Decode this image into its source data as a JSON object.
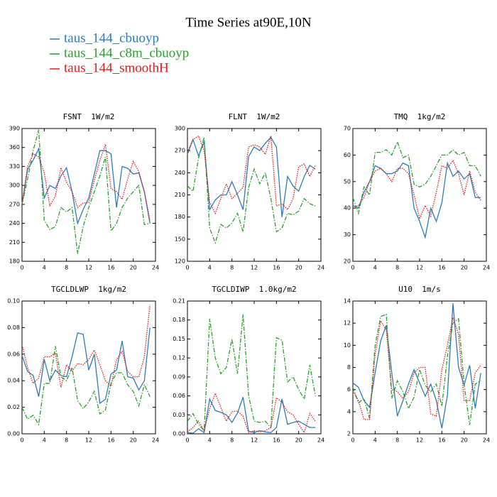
{
  "title": "Time Series at90E,10N",
  "chart_data": [
    {
      "type": "line",
      "title": "FSNT  1W/m2",
      "x": [
        0,
        1,
        2,
        3,
        4,
        5,
        6,
        7,
        8,
        9,
        10,
        11,
        12,
        13,
        14,
        15,
        16,
        17,
        18,
        19,
        20,
        21,
        22,
        23
      ],
      "xlim": [
        0,
        24
      ],
      "xticks": [
        0,
        4,
        8,
        12,
        16,
        20,
        24
      ],
      "ylim": [
        180,
        390
      ],
      "yticks": [
        180,
        210,
        240,
        270,
        300,
        330,
        360,
        390
      ],
      "series": [
        {
          "name": "taus_144_cbuoyp",
          "color": "#2b7bba",
          "style": "solid",
          "values": [
            270,
            325,
            340,
            358,
            280,
            300,
            295,
            315,
            328,
            290,
            240,
            262,
            280,
            318,
            355,
            355,
            350,
            265,
            330,
            327,
            318,
            320,
            290,
            240
          ]
        },
        {
          "name": "taus_144_c8m_cbuoyp",
          "color": "#2ca02c",
          "style": "dashdot",
          "values": [
            270,
            310,
            355,
            388,
            245,
            230,
            235,
            265,
            258,
            265,
            192,
            235,
            265,
            290,
            315,
            345,
            228,
            240,
            265,
            280,
            290,
            300,
            238,
            240
          ]
        },
        {
          "name": "taus_144_smoothH",
          "color": "#e41a1c",
          "style": "dotted",
          "values": [
            270,
            330,
            350,
            345,
            320,
            268,
            283,
            328,
            305,
            290,
            265,
            272,
            273,
            308,
            340,
            365,
            295,
            290,
            278,
            310,
            338,
            322,
            290,
            245
          ]
        }
      ]
    },
    {
      "type": "line",
      "title": "FLNT  1W/m2",
      "x": [
        0,
        1,
        2,
        3,
        4,
        5,
        6,
        7,
        8,
        9,
        10,
        11,
        12,
        13,
        14,
        15,
        16,
        17,
        18,
        19,
        20,
        21,
        22,
        23
      ],
      "xlim": [
        0,
        24
      ],
      "xticks": [
        0,
        4,
        8,
        12,
        16,
        20,
        24
      ],
      "ylim": [
        120,
        300
      ],
      "yticks": [
        120,
        150,
        180,
        210,
        240,
        270,
        300
      ],
      "series": [
        {
          "name": "taus_144_cbuoyp",
          "color": "#2b7bba",
          "style": "solid",
          "values": [
            265,
            285,
            263,
            282,
            190,
            203,
            210,
            210,
            228,
            210,
            190,
            262,
            275,
            270,
            280,
            288,
            275,
            180,
            235,
            222,
            215,
            235,
            250,
            245
          ]
        },
        {
          "name": "taus_144_c8m_cbuoyp",
          "color": "#2ca02c",
          "style": "dashdot",
          "values": [
            222,
            215,
            260,
            288,
            165,
            145,
            170,
            165,
            172,
            185,
            160,
            220,
            245,
            225,
            240,
            205,
            160,
            165,
            185,
            183,
            188,
            205,
            198,
            195
          ]
        },
        {
          "name": "taus_144_smoothH",
          "color": "#e41a1c",
          "style": "dotted",
          "values": [
            268,
            285,
            290,
            270,
            200,
            185,
            205,
            225,
            205,
            212,
            220,
            275,
            278,
            275,
            265,
            290,
            195,
            198,
            190,
            205,
            248,
            252,
            235,
            250
          ]
        }
      ]
    },
    {
      "type": "line",
      "title": "TMQ  1kg/m2",
      "x": [
        0,
        1,
        2,
        3,
        4,
        5,
        6,
        7,
        8,
        9,
        10,
        11,
        12,
        13,
        14,
        15,
        16,
        17,
        18,
        19,
        20,
        21,
        22,
        23
      ],
      "xlim": [
        0,
        24
      ],
      "xticks": [
        0,
        4,
        8,
        12,
        16,
        20,
        24
      ],
      "ylim": [
        20,
        70
      ],
      "yticks": [
        20,
        30,
        40,
        50,
        60,
        70
      ],
      "series": [
        {
          "name": "taus_144_cbuoyp",
          "color": "#2b7bba",
          "style": "solid",
          "values": [
            41,
            40,
            46,
            50,
            56,
            55,
            53,
            53,
            54,
            57,
            56,
            40,
            35,
            29,
            40,
            35,
            42,
            57,
            52,
            54,
            51,
            53,
            44,
            44
          ]
        },
        {
          "name": "taus_144_c8m_cbuoyp",
          "color": "#2ca02c",
          "style": "dashdot",
          "values": [
            44,
            38,
            48,
            45,
            61,
            61,
            62,
            60,
            65,
            59,
            60,
            49,
            48,
            49,
            52,
            56,
            60,
            60,
            62,
            60,
            61,
            56,
            56,
            52
          ]
        },
        {
          "name": "taus_144_smoothH",
          "color": "#e41a1c",
          "style": "dotted",
          "values": [
            40,
            41,
            44,
            50,
            54,
            55,
            53,
            50,
            55,
            55,
            53,
            45,
            36,
            41,
            37,
            46,
            56,
            55,
            58,
            53,
            45,
            54,
            46,
            43
          ]
        }
      ]
    },
    {
      "type": "line",
      "title": "TGCLDLWP  1kg/m2",
      "x": [
        0,
        1,
        2,
        3,
        4,
        5,
        6,
        7,
        8,
        9,
        10,
        11,
        12,
        13,
        14,
        15,
        16,
        17,
        18,
        19,
        20,
        21,
        22,
        23
      ],
      "xlim": [
        0,
        24
      ],
      "xticks": [
        0,
        4,
        8,
        12,
        16,
        20,
        24
      ],
      "ylim": [
        0,
        0.1
      ],
      "yticks": [
        {
          "value": 0,
          "label": "0.00"
        },
        0.02,
        0.04,
        0.06,
        0.08,
        {
          "value": 0.1,
          "label": "0.10"
        }
      ],
      "series": [
        {
          "name": "taus_144_cbuoyp",
          "color": "#2b7bba",
          "style": "solid",
          "values": [
            0.059,
            0.047,
            0.044,
            0.028,
            0.056,
            0.04,
            0.048,
            0.044,
            0.043,
            0.058,
            0.076,
            0.075,
            0.048,
            0.06,
            0.023,
            0.026,
            0.045,
            0.048,
            0.07,
            0.043,
            0.042,
            0.033,
            0.04,
            0.08
          ]
        },
        {
          "name": "taus_144_c8m_cbuoyp",
          "color": "#2ca02c",
          "style": "dashdot",
          "values": [
            0.02,
            0.011,
            0.014,
            0.007,
            0.038,
            0.038,
            0.066,
            0.043,
            0.04,
            0.05,
            0.025,
            0.019,
            0.024,
            0.032,
            0.015,
            0.018,
            0.038,
            0.046,
            0.046,
            0.037,
            0.032,
            0.021,
            0.037,
            0.028
          ]
        },
        {
          "name": "taus_144_smoothH",
          "color": "#e41a1c",
          "style": "dotted",
          "values": [
            0.067,
            0.05,
            0.038,
            0.042,
            0.058,
            0.058,
            0.061,
            0.035,
            0.052,
            0.047,
            0.053,
            0.052,
            0.056,
            0.063,
            0.052,
            0.04,
            0.036,
            0.056,
            0.062,
            0.047,
            0.043,
            0.043,
            0.058,
            0.097
          ]
        }
      ]
    },
    {
      "type": "line",
      "title": "TGCLDIWP  1.0kg/m2",
      "x": [
        0,
        1,
        2,
        3,
        4,
        5,
        6,
        7,
        8,
        9,
        10,
        11,
        12,
        13,
        14,
        15,
        16,
        17,
        18,
        19,
        20,
        21,
        22,
        23
      ],
      "xlim": [
        0,
        24
      ],
      "xticks": [
        0,
        4,
        8,
        12,
        16,
        20,
        24
      ],
      "ylim": [
        0,
        0.21
      ],
      "yticks": [
        {
          "value": 0,
          "label": "0.00"
        },
        0.03,
        0.06,
        0.09,
        0.12,
        0.15,
        0.18,
        0.21
      ],
      "series": [
        {
          "name": "taus_144_cbuoyp",
          "color": "#2b7bba",
          "style": "solid",
          "values": [
            0.002,
            0.001,
            0.008,
            0.002,
            0.055,
            0.037,
            0.034,
            0.03,
            0.018,
            0.033,
            0.058,
            0.004,
            0.002,
            0.005,
            0.003,
            0.002,
            0.01,
            0.055,
            0.015,
            0.018,
            0.02,
            0.015,
            0.01,
            0.01
          ]
        },
        {
          "name": "taus_144_c8m_cbuoyp",
          "color": "#2ca02c",
          "style": "dashdot",
          "values": [
            0.02,
            0.032,
            0.015,
            0.005,
            0.182,
            0.12,
            0.095,
            0.105,
            0.15,
            0.095,
            0.189,
            0.06,
            0.02,
            0.018,
            0.02,
            0.01,
            0.152,
            0.148,
            0.082,
            0.09,
            0.07,
            0.055,
            0.109,
            0.06
          ]
        },
        {
          "name": "taus_144_smoothH",
          "color": "#e41a1c",
          "style": "dotted",
          "values": [
            0.003,
            0.01,
            0.02,
            0.005,
            0.04,
            0.064,
            0.042,
            0.02,
            0.035,
            0.036,
            0.028,
            0.002,
            0.005,
            0.003,
            0.005,
            0.01,
            0.057,
            0.05,
            0.035,
            0.03,
            0.015,
            0.002,
            0.032,
            0.02
          ]
        }
      ]
    },
    {
      "type": "line",
      "title": "U10  1m/s",
      "x": [
        0,
        1,
        2,
        3,
        4,
        5,
        6,
        7,
        8,
        9,
        10,
        11,
        12,
        13,
        14,
        15,
        16,
        17,
        18,
        19,
        20,
        21,
        22,
        23
      ],
      "xlim": [
        0,
        24
      ],
      "xticks": [
        0,
        4,
        8,
        12,
        16,
        20,
        24
      ],
      "ylim": [
        2,
        14
      ],
      "yticks": [
        2,
        4,
        6,
        8,
        10,
        12,
        14
      ],
      "series": [
        {
          "name": "taus_144_cbuoyp",
          "color": "#2b7bba",
          "style": "solid",
          "values": [
            6.6,
            6.2,
            5.0,
            4.4,
            7.5,
            10.4,
            11.8,
            7.5,
            3.6,
            5.0,
            6.5,
            7.8,
            6.6,
            5.4,
            6.5,
            5.0,
            2.5,
            5.5,
            13.8,
            8.0,
            6.4,
            8.2,
            4.3,
            7.5
          ]
        },
        {
          "name": "taus_144_c8m_cbuoyp",
          "color": "#2ca02c",
          "style": "dashdot",
          "values": [
            6.2,
            4.8,
            5.2,
            3.4,
            10.0,
            12.6,
            12.8,
            5.2,
            6.8,
            5.8,
            4.3,
            5.3,
            7.8,
            6.4,
            5.8,
            6.5,
            4.5,
            9.0,
            12.0,
            12.4,
            6.5,
            2.8,
            6.5,
            6.8
          ]
        },
        {
          "name": "taus_144_smoothH",
          "color": "#e41a1c",
          "style": "dotted",
          "values": [
            5.9,
            5.0,
            3.3,
            3.3,
            9.2,
            12.2,
            11.4,
            6.0,
            5.8,
            5.2,
            5.8,
            7.5,
            8.0,
            8.0,
            3.8,
            3.6,
            7.8,
            10.0,
            12.5,
            11.0,
            5.0,
            5.0,
            7.5,
            8.2
          ]
        }
      ]
    }
  ]
}
